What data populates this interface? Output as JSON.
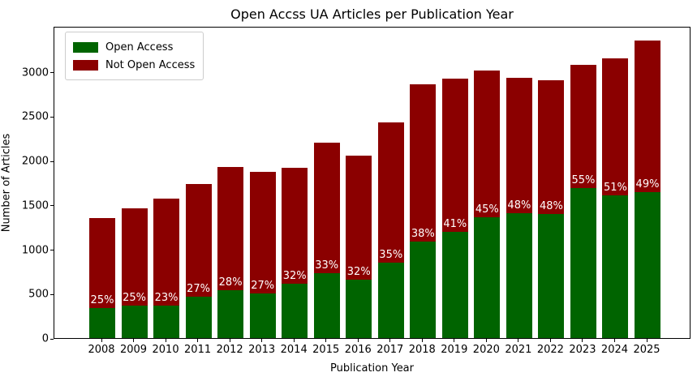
{
  "title": "Open Accss UA Articles per Publication Year",
  "chart_data": {
    "type": "bar",
    "stacked": true,
    "title": "Open Accss UA Articles per Publication Year",
    "xlabel": "Publication Year",
    "ylabel": "Number of Articles",
    "categories": [
      "2008",
      "2009",
      "2010",
      "2011",
      "2012",
      "2013",
      "2014",
      "2015",
      "2016",
      "2017",
      "2018",
      "2019",
      "2020",
      "2021",
      "2022",
      "2023",
      "2024",
      "2025"
    ],
    "series": [
      {
        "name": "Open Access",
        "color": "#006400",
        "values": [
          338,
          365,
          361,
          470,
          540,
          505,
          613,
          728,
          659,
          850,
          1087,
          1199,
          1357,
          1409,
          1394,
          1694,
          1607,
          1642
        ]
      },
      {
        "name": "Not Open Access",
        "color": "#8B0000",
        "values": [
          1012,
          1095,
          1209,
          1270,
          1390,
          1365,
          1302,
          1477,
          1401,
          1580,
          1773,
          1726,
          1658,
          1526,
          1511,
          1386,
          1543,
          1708
        ]
      }
    ],
    "totals": [
      1350,
      1460,
      1570,
      1740,
      1930,
      1870,
      1915,
      2205,
      2060,
      2430,
      2860,
      2925,
      3015,
      2935,
      2905,
      3080,
      3150,
      3350
    ],
    "bar_labels": [
      "25%",
      "25%",
      "23%",
      "27%",
      "28%",
      "27%",
      "32%",
      "33%",
      "32%",
      "35%",
      "38%",
      "41%",
      "45%",
      "48%",
      "48%",
      "55%",
      "51%",
      "49%"
    ],
    "percent_open": [
      25,
      25,
      23,
      27,
      28,
      27,
      32,
      33,
      32,
      35,
      38,
      41,
      45,
      48,
      48,
      55,
      51,
      49
    ],
    "bar_label_color": "#ffffff",
    "yticks": [
      0,
      500,
      1000,
      1500,
      2000,
      2500,
      3000
    ],
    "ylim": [
      0,
      3517
    ],
    "grid": false,
    "legend_position": "upper left"
  }
}
